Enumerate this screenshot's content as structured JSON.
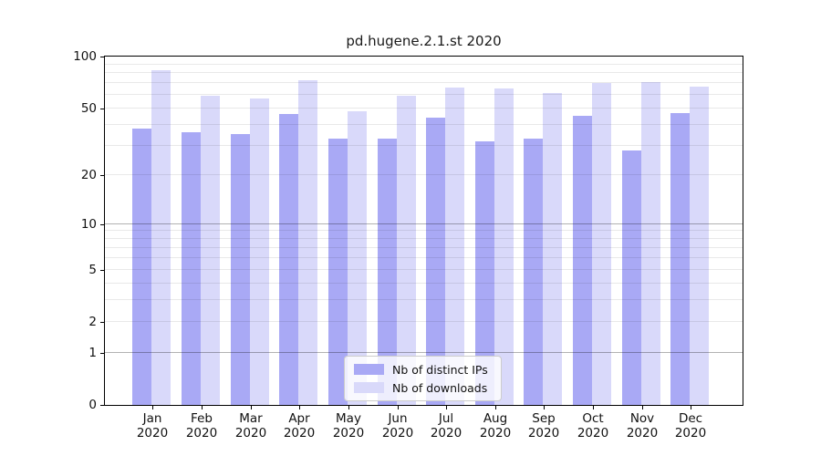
{
  "chart_data": {
    "type": "bar",
    "title": "pd.hugene.2.1.st 2020",
    "categories": [
      "Jan",
      "Feb",
      "Mar",
      "Apr",
      "May",
      "Jun",
      "Jul",
      "Aug",
      "Sep",
      "Oct",
      "Nov",
      "Dec"
    ],
    "x_tick_second_line": "2020",
    "series": [
      {
        "name": "Nb of distinct IPs",
        "color": "#a9a9f5",
        "values": [
          38,
          36,
          35,
          46,
          33,
          33,
          44,
          32,
          33,
          45,
          28,
          47
        ]
      },
      {
        "name": "Nb of downloads",
        "color": "#d9d9fa",
        "values": [
          83,
          59,
          57,
          73,
          48,
          59,
          66,
          65,
          61,
          70,
          71,
          67
        ]
      }
    ],
    "yscale": "log1p",
    "ylim": [
      0,
      100
    ],
    "y_ticks": [
      100,
      50,
      20,
      10,
      5,
      2,
      1,
      0
    ],
    "gridlines": {
      "major": [
        1,
        10,
        100
      ],
      "minor": [
        2,
        3,
        4,
        5,
        6,
        7,
        8,
        9,
        20,
        30,
        40,
        50,
        60,
        70,
        80,
        90
      ]
    },
    "grid": true,
    "legend_position": "lower center",
    "axis_color": "#000000",
    "grid_major_color": "#b5b5b5",
    "grid_minor_color": "#e9e9e9",
    "background_color": "#ffffff"
  }
}
